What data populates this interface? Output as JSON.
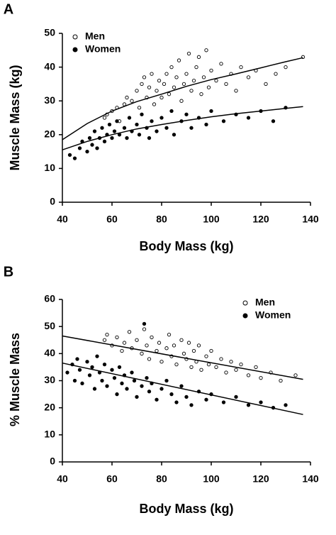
{
  "chart_data": [
    {
      "type": "scatter",
      "panel_label": "A",
      "xlabel": "Body Mass (kg)",
      "ylabel": "Muscle Mass (kg)",
      "xlim": [
        40,
        140
      ],
      "ylim": [
        0,
        50
      ],
      "xticks": [
        40,
        60,
        80,
        100,
        120,
        140
      ],
      "yticks": [
        0,
        10,
        20,
        30,
        40,
        50
      ],
      "legend": "upper left",
      "series": [
        {
          "name": "Men",
          "marker": "open",
          "color": "#000000",
          "x": [
            57,
            58,
            60,
            62,
            63,
            65,
            66,
            68,
            70,
            71,
            72,
            73,
            74,
            75,
            76,
            77,
            78,
            79,
            80,
            81,
            82,
            83,
            84,
            85,
            86,
            87,
            88,
            89,
            90,
            91,
            92,
            93,
            94,
            95,
            96,
            97,
            98,
            99,
            100,
            102,
            104,
            106,
            108,
            110,
            112,
            115,
            118,
            122,
            126,
            130,
            137
          ],
          "values": [
            25,
            26,
            27,
            28,
            24,
            29,
            31,
            30,
            33,
            28,
            35,
            37,
            31,
            34,
            38,
            29,
            33,
            36,
            31,
            35,
            38,
            32,
            40,
            34,
            37,
            42,
            30,
            35,
            38,
            44,
            33,
            36,
            40,
            43,
            32,
            37,
            45,
            34,
            39,
            36,
            41,
            35,
            38,
            33,
            40,
            37,
            39,
            35,
            38,
            40,
            43
          ]
        },
        {
          "name": "Women",
          "marker": "filled",
          "color": "#000000",
          "x": [
            43,
            45,
            47,
            48,
            50,
            51,
            52,
            53,
            54,
            55,
            56,
            57,
            58,
            59,
            60,
            61,
            62,
            63,
            65,
            66,
            67,
            68,
            70,
            71,
            72,
            74,
            75,
            76,
            78,
            80,
            82,
            84,
            85,
            88,
            90,
            92,
            95,
            98,
            100,
            105,
            110,
            115,
            120,
            125,
            130
          ],
          "values": [
            14,
            13,
            16,
            18,
            15,
            19,
            17,
            21,
            16,
            19,
            22,
            18,
            20,
            23,
            19,
            21,
            24,
            20,
            22,
            19,
            25,
            21,
            23,
            20,
            26,
            22,
            19,
            24,
            21,
            25,
            22,
            27,
            20,
            24,
            26,
            22,
            25,
            23,
            27,
            24,
            26,
            25,
            27,
            24,
            28
          ]
        }
      ],
      "fits": [
        {
          "x": [
            40,
            50,
            60,
            70,
            80,
            90,
            100,
            110,
            120,
            130,
            137
          ],
          "values": [
            18.5,
            23.3,
            27,
            29.8,
            32,
            34.3,
            36.3,
            38,
            39.8,
            41.6,
            42.8
          ]
        },
        {
          "x": [
            40,
            50,
            60,
            70,
            80,
            90,
            100,
            110,
            120,
            130,
            137
          ],
          "values": [
            15.5,
            18,
            20,
            21.7,
            23,
            24.2,
            25.3,
            26.2,
            27,
            27.8,
            28.3
          ]
        }
      ]
    },
    {
      "type": "scatter",
      "panel_label": "B",
      "xlabel": "Body Mass (kg)",
      "ylabel": "% Muscle Mass",
      "xlim": [
        40,
        140
      ],
      "ylim": [
        0,
        60
      ],
      "xticks": [
        40,
        60,
        80,
        100,
        120,
        140
      ],
      "yticks": [
        0,
        10,
        20,
        30,
        40,
        50,
        60
      ],
      "legend": "upper right",
      "series": [
        {
          "name": "Men",
          "marker": "open",
          "color": "#000000",
          "x": [
            57,
            58,
            60,
            62,
            64,
            65,
            67,
            68,
            70,
            72,
            73,
            74,
            75,
            76,
            78,
            79,
            80,
            82,
            83,
            84,
            85,
            86,
            88,
            89,
            90,
            91,
            92,
            93,
            94,
            95,
            96,
            98,
            99,
            100,
            102,
            104,
            106,
            108,
            110,
            112,
            115,
            118,
            120,
            124,
            128,
            134
          ],
          "values": [
            45,
            47,
            43,
            46,
            41,
            44,
            48,
            42,
            45,
            40,
            49,
            43,
            38,
            46,
            41,
            44,
            37,
            42,
            47,
            39,
            43,
            36,
            45,
            40,
            38,
            44,
            35,
            41,
            37,
            43,
            34,
            39,
            36,
            41,
            35,
            38,
            33,
            37,
            34,
            36,
            32,
            35,
            31,
            33,
            30,
            32
          ]
        },
        {
          "name": "Women",
          "marker": "filled",
          "color": "#000000",
          "x": [
            42,
            44,
            45,
            46,
            47,
            48,
            50,
            51,
            52,
            53,
            54,
            55,
            56,
            57,
            58,
            60,
            61,
            62,
            63,
            64,
            65,
            66,
            68,
            69,
            70,
            72,
            73,
            74,
            75,
            76,
            78,
            80,
            82,
            84,
            86,
            88,
            90,
            92,
            95,
            98,
            100,
            105,
            110,
            115,
            120,
            125,
            130
          ],
          "values": [
            33,
            36,
            30,
            38,
            34,
            29,
            37,
            32,
            35,
            27,
            39,
            33,
            30,
            36,
            28,
            34,
            31,
            25,
            35,
            29,
            32,
            27,
            33,
            30,
            24,
            28,
            51,
            31,
            26,
            29,
            23,
            27,
            30,
            25,
            22,
            28,
            24,
            21,
            26,
            23,
            25,
            22,
            24,
            21,
            22,
            20,
            21
          ]
        }
      ],
      "fits": [
        {
          "x": [
            40,
            137
          ],
          "values": [
            46.5,
            30.5
          ]
        },
        {
          "x": [
            40,
            137
          ],
          "values": [
            36.5,
            17.5
          ]
        }
      ]
    }
  ]
}
